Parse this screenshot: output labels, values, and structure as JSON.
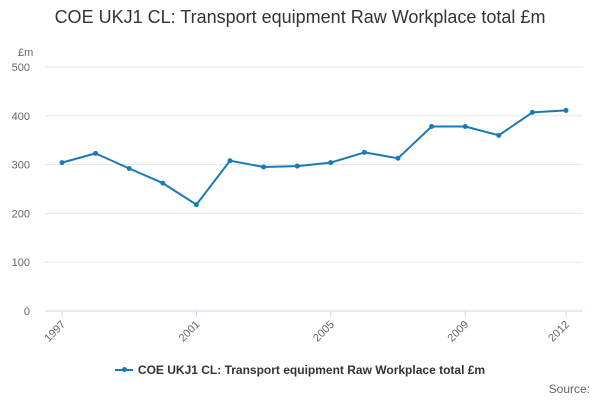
{
  "chart_data": {
    "type": "line",
    "title": "COE UKJ1 CL: Transport equipment Raw Workplace total £m",
    "ylabel": "£m",
    "xlabel": "",
    "ylim": [
      0,
      500
    ],
    "yticks": [
      0,
      100,
      200,
      300,
      400,
      500
    ],
    "xtick_labels": [
      "1997",
      "2001",
      "2005",
      "2009",
      "2012"
    ],
    "x": [
      1997,
      1998,
      1999,
      2000,
      2001,
      2002,
      2003,
      2004,
      2005,
      2006,
      2007,
      2008,
      2009,
      2010,
      2011,
      2012
    ],
    "series": [
      {
        "name": "COE UKJ1 CL: Transport equipment Raw Workplace total £m",
        "values": [
          304,
          323,
          292,
          262,
          218,
          308,
          295,
          297,
          304,
          325,
          313,
          378,
          378,
          360,
          407,
          411
        ]
      }
    ],
    "grid": true,
    "legend_position": "bottom",
    "source_label": "Source:",
    "color": "#1a7ab6"
  }
}
